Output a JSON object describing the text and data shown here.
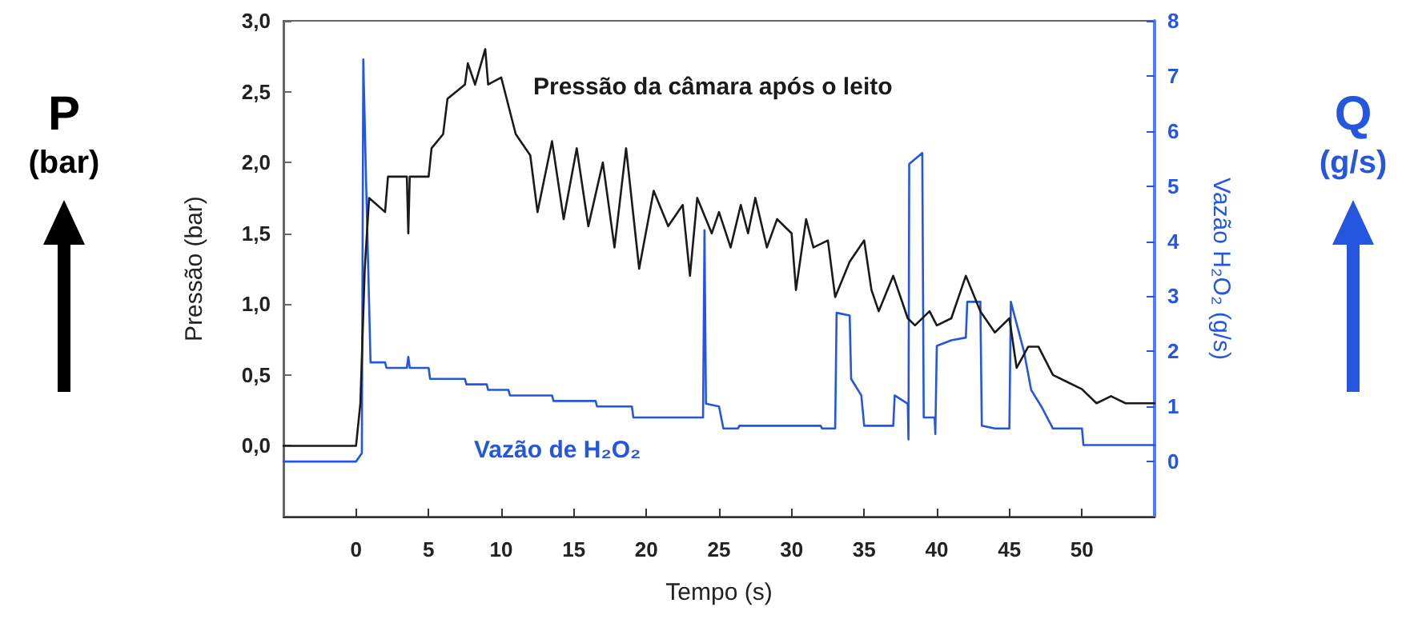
{
  "chart_data": {
    "type": "line",
    "xlabel": "Tempo (s)",
    "ylabel": "Pressão (bar)",
    "y2label": "Vazão H₂O₂ (g/s)",
    "annotations": [
      "P",
      "(bar)",
      "Q",
      "(g/s)"
    ],
    "xlim": [
      -5,
      55
    ],
    "xticks": [
      0,
      5,
      10,
      15,
      20,
      25,
      30,
      35,
      40,
      45,
      50
    ],
    "ylim": [
      -0.5,
      3.0
    ],
    "yticks": [
      {
        "value": 0,
        "label": "0,0"
      },
      {
        "value": 0.5,
        "label": "0,5"
      },
      {
        "value": 1,
        "label": "1,0"
      },
      {
        "value": 1.5,
        "label": "1,5"
      },
      {
        "value": 2,
        "label": "2,0"
      },
      {
        "value": 2.5,
        "label": "2,5"
      },
      {
        "value": 3,
        "label": "3,0"
      }
    ],
    "y2lim": [
      -1,
      8
    ],
    "y2ticks": [
      0,
      1,
      2,
      3,
      4,
      5,
      6,
      7,
      8
    ],
    "marker": "none",
    "line_style": "solid",
    "series": [
      {
        "name": "Pressão da câmara após o leito",
        "color": "#1a1a1a",
        "x": [
          -5,
          0,
          0.3,
          0.6,
          0.9,
          2,
          2.2,
          3.5,
          3.6,
          3.7,
          5,
          5.2,
          6,
          6.3,
          7.5,
          7.7,
          8.2,
          8.9,
          9.1,
          10,
          11,
          12,
          12.5,
          13.5,
          14.3,
          15.2,
          16,
          17,
          17.8,
          18.6,
          19.5,
          20.5,
          21.5,
          22.5,
          23,
          23.5,
          24.5,
          25,
          25.8,
          26.5,
          27,
          27.5,
          28.3,
          29,
          30,
          30.3,
          31,
          31.5,
          32.5,
          33,
          34,
          35,
          35.5,
          36,
          37,
          38,
          38.5,
          39.5,
          40,
          41,
          42,
          43,
          44,
          45,
          45.5,
          46.3,
          47,
          48,
          49,
          50,
          51,
          52,
          53,
          55
        ],
        "values": [
          0,
          0,
          0.3,
          1.25,
          1.75,
          1.65,
          1.9,
          1.9,
          1.5,
          1.9,
          1.9,
          2.1,
          2.2,
          2.45,
          2.55,
          2.7,
          2.55,
          2.8,
          2.55,
          2.6,
          2.2,
          2.05,
          1.65,
          2.15,
          1.6,
          2.1,
          1.55,
          2.0,
          1.4,
          2.1,
          1.25,
          1.8,
          1.55,
          1.7,
          1.2,
          1.75,
          1.5,
          1.65,
          1.4,
          1.7,
          1.5,
          1.75,
          1.4,
          1.6,
          1.5,
          1.1,
          1.6,
          1.4,
          1.45,
          1.05,
          1.3,
          1.45,
          1.1,
          0.95,
          1.2,
          0.9,
          0.85,
          0.95,
          0.85,
          0.9,
          1.2,
          0.95,
          0.8,
          0.9,
          0.55,
          0.7,
          0.7,
          0.5,
          0.45,
          0.4,
          0.3,
          0.35,
          0.3,
          0.3
        ]
      },
      {
        "name": "Vazão de H₂O₂",
        "color": "#2456e0",
        "axis": "y2",
        "x": [
          -5,
          0,
          0.4,
          0.5,
          0.7,
          1.0,
          2.0,
          2.1,
          3.5,
          3.6,
          3.7,
          5.0,
          5.1,
          7.5,
          7.6,
          9.0,
          9.1,
          10.5,
          10.6,
          13.5,
          13.6,
          16.5,
          16.6,
          19.0,
          19.1,
          23.9,
          24.0,
          24.1,
          25.0,
          25.3,
          26.3,
          26.4,
          32.0,
          32.1,
          33.0,
          33.1,
          34.0,
          34.1,
          34.8,
          35.0,
          37.0,
          37.1,
          38.0,
          38.05,
          38.1,
          39.0,
          39.1,
          39.85,
          39.9,
          40.0,
          41.0,
          42.0,
          42.1,
          43.0,
          43.1,
          44.0,
          45.0,
          45.1,
          46.0,
          46.5,
          47.2,
          48.0,
          50.0,
          50.1,
          55.0
        ],
        "values": [
          0,
          0,
          0.15,
          7.3,
          5.0,
          1.8,
          1.8,
          1.7,
          1.7,
          1.9,
          1.7,
          1.7,
          1.5,
          1.5,
          1.4,
          1.4,
          1.3,
          1.3,
          1.2,
          1.2,
          1.1,
          1.1,
          1.0,
          1.0,
          0.8,
          0.8,
          4.2,
          1.05,
          1.0,
          0.6,
          0.6,
          0.65,
          0.65,
          0.6,
          0.6,
          2.7,
          2.65,
          1.5,
          1.2,
          0.65,
          0.65,
          1.2,
          1.05,
          0.4,
          5.4,
          5.6,
          0.8,
          0.8,
          0.5,
          2.1,
          2.2,
          2.25,
          2.9,
          2.9,
          0.65,
          0.6,
          0.6,
          2.9,
          2.0,
          1.3,
          1.0,
          0.6,
          0.6,
          0.3,
          0.3
        ]
      }
    ]
  }
}
